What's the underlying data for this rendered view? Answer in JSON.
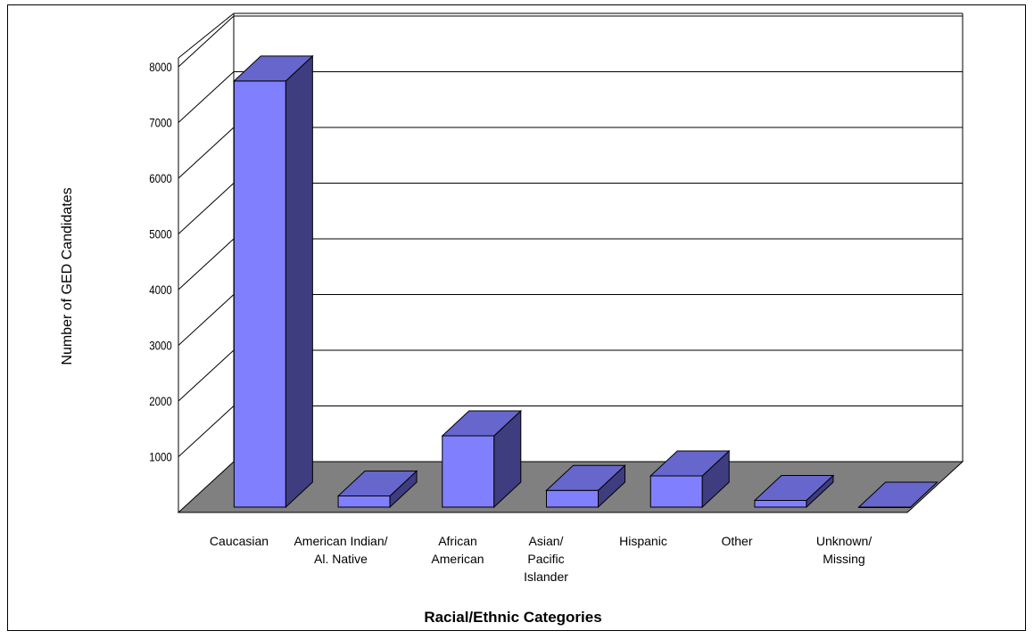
{
  "chart_data": {
    "type": "bar",
    "title": "",
    "xlabel": "Racial/Ethnic Categories",
    "ylabel": "Number of GED Candidates",
    "ylim": [
      0,
      8000
    ],
    "yticks": [
      1000,
      2000,
      3000,
      4000,
      5000,
      6000,
      7000,
      8000
    ],
    "grid": true,
    "categories": [
      [
        "Caucasian"
      ],
      [
        "American Indian/",
        "Al. Native"
      ],
      [
        "African",
        "American"
      ],
      [
        "Asian/",
        "Pacific",
        "Islander"
      ],
      [
        "Hispanic"
      ],
      [
        "Other"
      ],
      [
        "Unknown/",
        "Missing"
      ]
    ],
    "values": [
      7650,
      200,
      1280,
      300,
      560,
      120,
      0
    ],
    "colors": {
      "bar_front": "#8080ff",
      "bar_top": "#6666cc",
      "bar_side": "#3d3d80",
      "floor": "#808080"
    }
  }
}
